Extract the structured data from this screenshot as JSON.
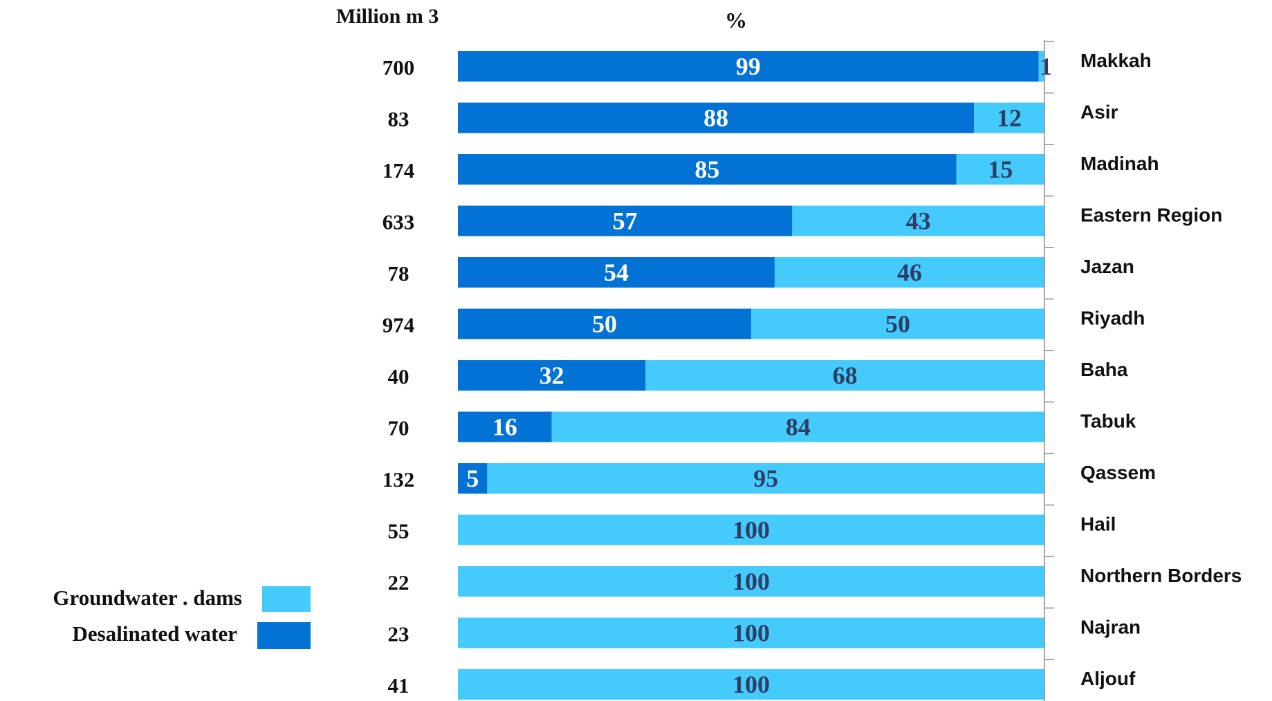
{
  "chart_data": {
    "type": "bar",
    "orientation": "horizontal",
    "stacked": true,
    "header_left": "Million m 3",
    "header_center": "%",
    "categories": [
      "Makkah",
      "Asir",
      "Madinah",
      "Eastern Region",
      "Jazan",
      "Riyadh",
      "Baha",
      "Tabuk",
      "Qassem",
      "Hail",
      "Northern Borders",
      "Najran",
      "Aljouf"
    ],
    "volumes": [
      "700",
      "83",
      "174",
      "633",
      "78",
      "974",
      "40",
      "70",
      "132",
      "55",
      "22",
      "23",
      "41"
    ],
    "series": [
      {
        "name": "Desalinated water",
        "color": "#0272D4",
        "values": [
          99,
          88,
          85,
          57,
          54,
          50,
          32,
          16,
          5,
          0,
          0,
          0,
          0
        ],
        "labels": [
          "99",
          "88",
          "85",
          "57",
          "54",
          "50",
          "32",
          "16",
          "5",
          "",
          "",
          "",
          ""
        ]
      },
      {
        "name": "Groundwater . dams",
        "color": "#45CBFB",
        "values": [
          1,
          12,
          15,
          43,
          46,
          50,
          68,
          84,
          95,
          100,
          100,
          100,
          100
        ],
        "labels": [
          "1",
          "12",
          "15",
          "43",
          "46",
          "50",
          "68",
          "84",
          "95",
          "100",
          "100",
          "100",
          "100"
        ]
      }
    ],
    "xlim": [
      0,
      100
    ],
    "legend": {
      "placement": "bottom-left",
      "entries": [
        "Groundwater . dams",
        "Desalinated water"
      ]
    },
    "grid": false
  }
}
